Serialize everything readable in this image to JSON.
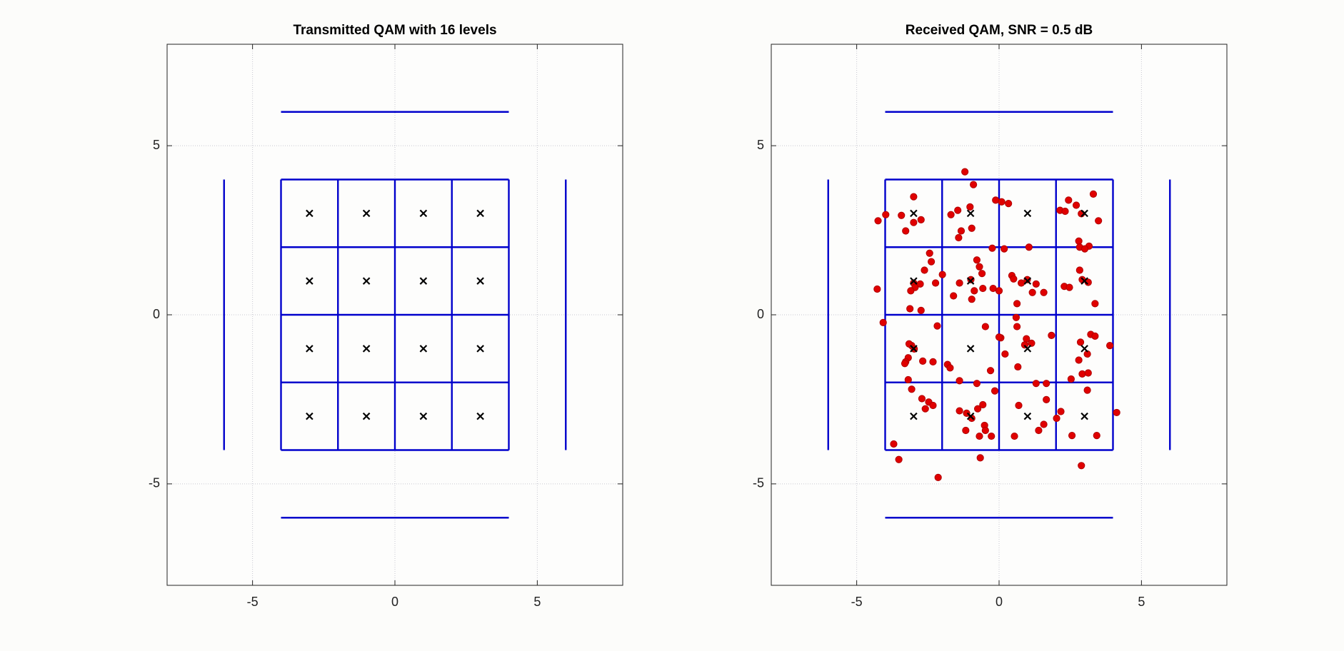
{
  "chart_data": [
    {
      "type": "scatter",
      "title": "Transmitted QAM with 16 levels",
      "xlim": [
        -8,
        8
      ],
      "ylim": [
        -8,
        8
      ],
      "xticks": [
        -5,
        0,
        5
      ],
      "yticks": [
        -5,
        0,
        5
      ],
      "grid": true,
      "segments_color": "#0000cc",
      "segments": [
        [
          -4,
          6,
          4,
          6
        ],
        [
          -4,
          -6,
          4,
          -6
        ],
        [
          -6,
          -4,
          -6,
          4
        ],
        [
          6,
          -4,
          6,
          4
        ],
        [
          -4,
          -4,
          -4,
          4
        ],
        [
          -2,
          -4,
          -2,
          4
        ],
        [
          0,
          -4,
          0,
          4
        ],
        [
          2,
          -4,
          2,
          4
        ],
        [
          4,
          -4,
          4,
          4
        ],
        [
          -4,
          -4,
          4,
          -4
        ],
        [
          -4,
          -2,
          4,
          -2
        ],
        [
          -4,
          0,
          4,
          0
        ],
        [
          -4,
          2,
          4,
          2
        ],
        [
          -4,
          4,
          4,
          4
        ]
      ],
      "series": [
        {
          "marker": "x",
          "color": "#000000",
          "x": [
            -3,
            -1,
            1,
            3,
            -3,
            -1,
            1,
            3,
            -3,
            -1,
            1,
            3,
            -3,
            -1,
            1,
            3
          ],
          "y": [
            3,
            3,
            3,
            3,
            1,
            1,
            1,
            1,
            -1,
            -1,
            -1,
            -1,
            -3,
            -3,
            -3,
            -3
          ]
        }
      ]
    },
    {
      "type": "scatter",
      "title": "Received QAM, SNR = 0.5 dB",
      "xlim": [
        -8,
        8
      ],
      "ylim": [
        -8,
        8
      ],
      "xticks": [
        -5,
        0,
        5
      ],
      "yticks": [
        -5,
        0,
        5
      ],
      "grid": true,
      "segments_color": "#0000cc",
      "segments": [
        [
          -4,
          6,
          4,
          6
        ],
        [
          -4,
          -6,
          4,
          -6
        ],
        [
          -6,
          -4,
          -6,
          4
        ],
        [
          6,
          -4,
          6,
          4
        ],
        [
          -4,
          -4,
          -4,
          4
        ],
        [
          -2,
          -4,
          -2,
          4
        ],
        [
          0,
          -4,
          0,
          4
        ],
        [
          2,
          -4,
          2,
          4
        ],
        [
          4,
          -4,
          4,
          4
        ],
        [
          -4,
          -4,
          4,
          -4
        ],
        [
          -4,
          -2,
          4,
          -2
        ],
        [
          -4,
          0,
          4,
          0
        ],
        [
          -4,
          2,
          4,
          2
        ],
        [
          -4,
          4,
          4,
          4
        ]
      ],
      "series": [
        {
          "marker": "dot",
          "color": "#e00000",
          "x": [
            -1.2,
            -0.9,
            -3.0,
            -4.25,
            -3.98,
            -3.43,
            -3.0,
            -2.74,
            -3.28,
            -1.69,
            -1.45,
            -1.02,
            -1.33,
            -0.96,
            -1.42,
            -0.12,
            0.09,
            0.33,
            2.14,
            2.44,
            2.71,
            2.89,
            3.31,
            3.49,
            2.32,
            2.8,
            2.83,
            3.16,
            3.01,
            -2.44,
            -2.38,
            -2.62,
            -1.99,
            -2.23,
            -3.0,
            -2.95,
            -3.1,
            -2.77,
            -4.28,
            -4.07,
            -3.13,
            -2.74,
            -0.78,
            -0.69,
            -0.24,
            0.18,
            1.05,
            -0.6,
            -1.39,
            -0.99,
            -0.87,
            -0.57,
            -0.96,
            -1.6,
            -0.21,
            0.0,
            0.45,
            0.51,
            0.78,
            0.99,
            1.3,
            1.57,
            1.17,
            0.63,
            2.29,
            2.47,
            2.83,
            2.92,
            3.13,
            3.37,
            0.6,
            0.63,
            -0.48,
            -2.17,
            -3.07,
            -3.16,
            -3.19,
            -3.28,
            -3.31,
            -2.98,
            -2.68,
            -2.32,
            -1.81,
            -1.72,
            -1.39,
            -0.3,
            -0.78,
            0.06,
            0.0,
            0.21,
            0.66,
            0.96,
            0.9,
            1.14,
            1.84,
            2.86,
            3.1,
            3.22,
            3.37,
            3.89,
            2.8,
            2.92,
            3.13,
            1.3,
            1.66,
            2.53,
            3.1,
            -3.19,
            -3.07,
            -2.71,
            -2.47,
            -2.32,
            -2.59,
            -1.39,
            -1.14,
            -0.75,
            -0.57,
            -0.15,
            -0.51,
            -0.48,
            -0.69,
            -0.27,
            -1.17,
            -0.96,
            0.54,
            0.69,
            1.39,
            1.57,
            1.66,
            2.02,
            2.17,
            2.56,
            3.43,
            4.13,
            -0.66,
            -2.14,
            -3.52,
            -3.7,
            2.89
          ],
          "y": [
            4.23,
            3.85,
            3.49,
            2.78,
            2.96,
            2.94,
            2.73,
            2.81,
            2.48,
            2.96,
            3.09,
            3.19,
            2.48,
            2.56,
            2.28,
            3.39,
            3.34,
            3.29,
            3.09,
            3.39,
            3.24,
            2.99,
            3.57,
            2.78,
            3.06,
            2.18,
            2.0,
            2.03,
            1.95,
            1.82,
            1.57,
            1.32,
            1.19,
            0.94,
            0.94,
            0.81,
            0.71,
            0.91,
            0.76,
            -0.23,
            0.18,
            0.13,
            1.62,
            1.42,
            1.97,
            1.95,
            2.0,
            1.22,
            0.94,
            1.04,
            0.71,
            0.78,
            0.46,
            0.56,
            0.78,
            0.71,
            1.16,
            1.06,
            0.94,
            1.04,
            0.91,
            0.66,
            0.66,
            0.33,
            0.84,
            0.81,
            1.32,
            1.04,
            0.96,
            0.33,
            -0.08,
            -0.35,
            -0.35,
            -0.33,
            -0.91,
            -0.86,
            -1.27,
            -1.39,
            -1.44,
            -1.01,
            -1.37,
            -1.39,
            -1.47,
            -1.57,
            -1.95,
            -1.65,
            -2.03,
            -0.68,
            -0.66,
            -1.16,
            -1.54,
            -0.71,
            -0.89,
            -0.84,
            -0.61,
            -0.81,
            -1.16,
            -0.58,
            -0.63,
            -0.91,
            -1.34,
            -1.75,
            -1.72,
            -2.03,
            -2.03,
            -1.9,
            -2.23,
            -1.92,
            -2.2,
            -2.48,
            -2.58,
            -2.68,
            -2.78,
            -2.84,
            -2.91,
            -2.78,
            -2.66,
            -2.25,
            -3.27,
            -3.42,
            -3.59,
            -3.59,
            -3.42,
            -3.06,
            -3.59,
            -2.68,
            -3.42,
            -3.24,
            -2.51,
            -3.06,
            -2.86,
            -3.57,
            -3.57,
            -2.89,
            -4.23,
            -4.81,
            -4.28,
            -3.82,
            -4.46
          ]
        },
        {
          "marker": "x",
          "color": "#000000",
          "x": [
            -3,
            -1,
            1,
            3,
            -3,
            -1,
            1,
            3,
            -3,
            -1,
            1,
            3,
            -3,
            -1,
            1,
            3
          ],
          "y": [
            3,
            3,
            3,
            3,
            1,
            1,
            1,
            1,
            -1,
            -1,
            -1,
            -1,
            -3,
            -3,
            -3,
            -3
          ]
        }
      ]
    }
  ]
}
